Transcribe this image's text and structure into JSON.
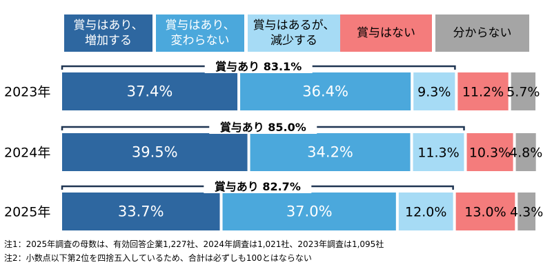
{
  "legend": [
    {
      "label": "賞与はあり、\n増加する",
      "color": "#2E67A0",
      "text_color": "#ffffff"
    },
    {
      "label": "賞与はあり、\n変わらない",
      "color": "#4BA8DC",
      "text_color": "#ffffff"
    },
    {
      "label": "賞与はあるが、\n減少する",
      "color": "#A6DBF5",
      "text_color": "#000000"
    },
    {
      "label": "賞与はない",
      "color": "#F47C7C",
      "text_color": "#000000"
    },
    {
      "label": "分からない",
      "color": "#A5A5A5",
      "text_color": "#000000"
    }
  ],
  "chart_data": {
    "type": "bar",
    "orientation": "horizontal",
    "stacked": true,
    "categories": [
      "2023年",
      "2024年",
      "2025年"
    ],
    "series": [
      {
        "name": "賞与はあり、増加する",
        "values": [
          37.4,
          39.5,
          33.7
        ]
      },
      {
        "name": "賞与はあり、変わらない",
        "values": [
          36.4,
          34.2,
          37.0
        ]
      },
      {
        "name": "賞与はあるが、減少する",
        "values": [
          9.3,
          11.3,
          12.0
        ]
      },
      {
        "name": "賞与はない",
        "values": [
          11.2,
          10.3,
          13.0
        ]
      },
      {
        "name": "分からない",
        "values": [
          5.7,
          4.8,
          4.3
        ]
      }
    ],
    "value_labels": [
      [
        "37.4%",
        "36.4%",
        "9.3%",
        "11.2%",
        "5.7%"
      ],
      [
        "39.5%",
        "34.2%",
        "11.3%",
        "10.3%",
        "4.8%"
      ],
      [
        "33.7%",
        "37.0%",
        "12.0%",
        "13.0%",
        "4.3%"
      ]
    ],
    "bracket_labels": [
      "賞与あり 83.1%",
      "賞与あり 85.0%",
      "賞与あり 82.7%"
    ],
    "bracket_values": [
      83.1,
      85.0,
      82.7
    ],
    "xlim": [
      0,
      100
    ],
    "grid": false
  },
  "notes": [
    "注1：2025年調査の母数は、有効回答企業1,227社、2024年調査は1,021社、2023年調査は1,095社",
    "注2：小数点以下第2位を四捨五入しているため、合計は必ずしも100とはならない"
  ]
}
